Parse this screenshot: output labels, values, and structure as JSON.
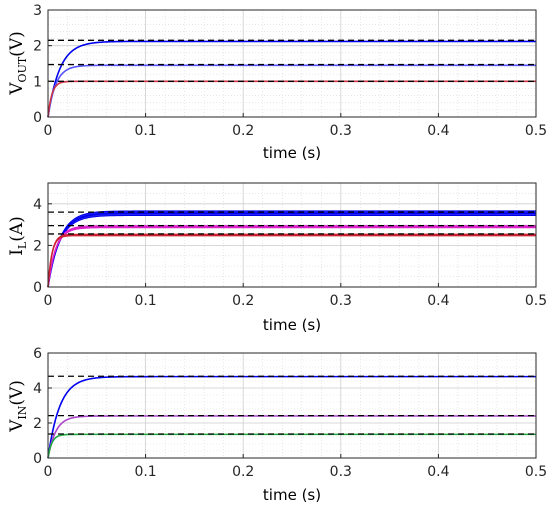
{
  "chart_data": [
    {
      "type": "line",
      "ylabel_main": "V",
      "ylabel_sub": "OUT",
      "ylabel_unit": "(V)",
      "xlabel": "time (s)",
      "xlim": [
        0,
        0.5
      ],
      "ylim": [
        0,
        3
      ],
      "xticks": [
        0,
        0.1,
        0.2,
        0.3,
        0.4,
        0.5
      ],
      "xtick_labels": [
        "0",
        "0.1",
        "0.2",
        "0.3",
        "0.4",
        "0.5"
      ],
      "yticks": [
        0,
        1,
        2,
        3
      ],
      "ytick_labels": [
        "0",
        "1",
        "2",
        "3"
      ],
      "grid": true,
      "series": [
        {
          "color": "#0000ee",
          "tau": 0.012,
          "final": 2.12,
          "ripple": 0.0,
          "reference": 2.15
        },
        {
          "color": "#5555ff",
          "tau": 0.008,
          "final": 1.45,
          "ripple": 0.0,
          "reference": 1.47
        },
        {
          "color": "#cc3344",
          "tau": 0.004,
          "final": 1.0,
          "ripple": 0.0,
          "reference": 1.0
        }
      ]
    },
    {
      "type": "line",
      "ylabel_main": "I",
      "ylabel_sub": "L",
      "ylabel_unit": "(A)",
      "xlabel": "time (s)",
      "xlim": [
        0,
        0.5
      ],
      "ylim": [
        0,
        5
      ],
      "xticks": [
        0,
        0.1,
        0.2,
        0.3,
        0.4,
        0.5
      ],
      "xtick_labels": [
        "0",
        "0.1",
        "0.2",
        "0.3",
        "0.4",
        "0.5"
      ],
      "yticks": [
        0,
        2,
        4
      ],
      "ytick_labels": [
        "0",
        "2",
        "4"
      ],
      "grid": true,
      "series": [
        {
          "color": "#0000ee",
          "tau": 0.012,
          "final": 3.55,
          "ripple": 0.22,
          "reference": 3.6
        },
        {
          "color": "#dd22cc",
          "tau": 0.008,
          "final": 2.9,
          "ripple": 0.1,
          "reference": 2.95
        },
        {
          "color": "#cc2233",
          "tau": 0.004,
          "final": 2.5,
          "ripple": 0.08,
          "reference": 2.55
        }
      ]
    },
    {
      "type": "line",
      "ylabel_main": "V",
      "ylabel_sub": "IN",
      "ylabel_unit": "(V)",
      "xlabel": "time (s)",
      "xlim": [
        0,
        0.5
      ],
      "ylim": [
        0,
        6
      ],
      "xticks": [
        0,
        0.1,
        0.2,
        0.3,
        0.4,
        0.5
      ],
      "xtick_labels": [
        "0",
        "0.1",
        "0.2",
        "0.3",
        "0.4",
        "0.5"
      ],
      "yticks": [
        0,
        2,
        4,
        6
      ],
      "ytick_labels": [
        "0",
        "2",
        "4",
        "6"
      ],
      "grid": true,
      "series": [
        {
          "color": "#0000ee",
          "tau": 0.012,
          "final": 4.65,
          "ripple": 0.0,
          "reference": 4.67
        },
        {
          "color": "#aa44cc",
          "tau": 0.008,
          "final": 2.4,
          "ripple": 0.0,
          "reference": 2.42
        },
        {
          "color": "#22aa44",
          "tau": 0.004,
          "final": 1.35,
          "ripple": 0.0,
          "reference": 1.37
        }
      ]
    }
  ]
}
